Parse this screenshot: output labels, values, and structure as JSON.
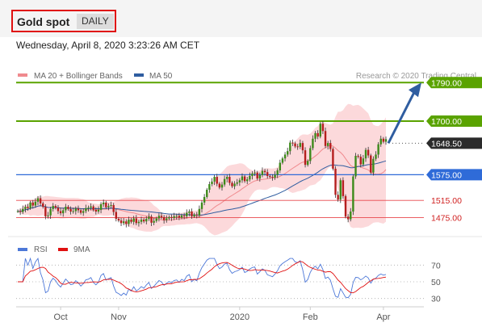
{
  "header": {
    "title": "Gold spot",
    "period": "DAILY",
    "timestamp": "Wednesday, April 8, 2020 3:23:26 AM CET"
  },
  "legend": {
    "ma20": "MA 20 + Bollinger Bands",
    "ma50": "MA 50",
    "rsi": "RSI",
    "ma9": "9MA",
    "credit": "Research © 2020 Trading Central"
  },
  "colors": {
    "green": "#5aa300",
    "blue": "#2f6bd8",
    "red": "#e8474c",
    "bollinger": "#fbd0d2",
    "arrow": "#2f5da0",
    "current_tag": "#2b2b2b",
    "rsi_line": "#4d78d8",
    "rsi_ma": "#e01010"
  },
  "chart_data": [
    {
      "type": "candlestick",
      "title": "Gold spot",
      "ylim": [
        1440,
        1800
      ],
      "x_ticks": [
        "Oct",
        "Nov",
        "2020",
        "Feb",
        "Apr"
      ],
      "indicators": [
        "MA 20 + Bollinger Bands",
        "MA 50"
      ],
      "current_price": 1648.5,
      "levels": [
        {
          "value": 1790.0,
          "label": "1790.00",
          "kind": "target",
          "color": "green"
        },
        {
          "value": 1700.0,
          "label": "1700.00",
          "kind": "resistance",
          "color": "green"
        },
        {
          "value": 1648.5,
          "label": "1648.50",
          "kind": "current",
          "color": "dark"
        },
        {
          "value": 1575.0,
          "label": "1575.00",
          "kind": "pivot",
          "color": "blue"
        },
        {
          "value": 1515.0,
          "label": "1515.00",
          "kind": "support",
          "color": "red"
        },
        {
          "value": 1475.0,
          "label": "1475.00",
          "kind": "support",
          "color": "red"
        }
      ],
      "forecast_arrow": {
        "from": 1648.5,
        "to": 1790.0
      },
      "closes": [
        1490,
        1488,
        1495,
        1500,
        1497,
        1510,
        1503,
        1512,
        1520,
        1508,
        1500,
        1478,
        1480,
        1495,
        1502,
        1498,
        1490,
        1485,
        1492,
        1500,
        1495,
        1489,
        1490,
        1496,
        1492,
        1486,
        1490,
        1497,
        1498,
        1501,
        1493,
        1489,
        1493,
        1506,
        1510,
        1499,
        1502,
        1504,
        1488,
        1472,
        1468,
        1462,
        1466,
        1460,
        1470,
        1465,
        1473,
        1462,
        1465,
        1470,
        1466,
        1472,
        1477,
        1463,
        1467,
        1473,
        1479,
        1476,
        1469,
        1473,
        1476,
        1474,
        1478,
        1479,
        1475,
        1480,
        1478,
        1486,
        1489,
        1478,
        1482,
        1480,
        1495,
        1510,
        1523,
        1540,
        1553,
        1559,
        1570,
        1554,
        1545,
        1552,
        1565,
        1570,
        1556,
        1548,
        1554,
        1557,
        1562,
        1571,
        1560,
        1564,
        1572,
        1578,
        1580,
        1566,
        1574,
        1584,
        1581,
        1572,
        1570,
        1568,
        1575,
        1585,
        1603,
        1613,
        1622,
        1630,
        1650,
        1648,
        1641,
        1640,
        1649,
        1632,
        1598,
        1607,
        1637,
        1659,
        1672,
        1664,
        1694,
        1677,
        1642,
        1649,
        1635,
        1589,
        1528,
        1517,
        1562,
        1525,
        1477,
        1471,
        1489,
        1571,
        1619,
        1617,
        1599,
        1613,
        1633,
        1620,
        1580,
        1612,
        1622,
        1646,
        1659,
        1652,
        1658
      ]
    },
    {
      "type": "line",
      "title": "RSI",
      "series": [
        {
          "name": "RSI"
        },
        {
          "name": "9MA"
        }
      ],
      "levels": [
        70,
        50,
        30
      ],
      "ylim": [
        20,
        80
      ]
    }
  ]
}
